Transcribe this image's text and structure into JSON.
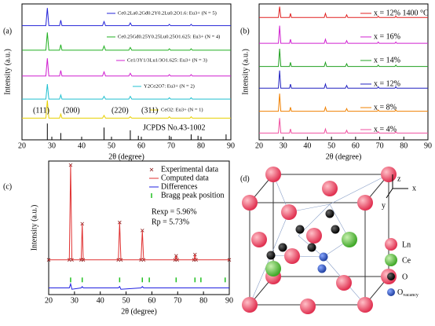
{
  "chart_data": [
    {
      "type": "line",
      "label": "(a)",
      "xlabel": "2θ (degree)",
      "ylabel": "Intensity (a.u.)",
      "xlim": [
        20,
        90
      ],
      "xticks": [
        20,
        30,
        40,
        50,
        60,
        70,
        80,
        90
      ],
      "ylim": [
        0,
        100
      ],
      "x": [
        20,
        28,
        28.5,
        29,
        32.6,
        33,
        33.4,
        47,
        47.5,
        48,
        55.8,
        56.3,
        56.8,
        69,
        69.4,
        69.8,
        76.3,
        76.7,
        77.1,
        90
      ],
      "series": [
        {
          "name": "Ce0.2La0.2Gd0.2Y0.2Lu0.2O1.6: Eu3+ (N = 5)",
          "color": "#2424d8",
          "values": [
            84,
            84,
            97,
            84,
            84,
            88,
            84,
            84,
            87,
            84,
            84,
            86,
            84,
            84,
            85,
            84,
            84,
            85,
            84,
            84
          ]
        },
        {
          "name": "Ce0.25Gd0.25Y0.25Lu0.25O1.625: Eu3+ (N = 4)",
          "color": "#22b022",
          "values": [
            66,
            66,
            79,
            66,
            66,
            70,
            66,
            66,
            69,
            66,
            66,
            68,
            66,
            66,
            67,
            66,
            66,
            67,
            66,
            66
          ]
        },
        {
          "name": "Ce1/3Y1/3Lu1/3O1.625: Eu3+ (N = 3)",
          "color": "#d020d0",
          "values": [
            47,
            47,
            60,
            47,
            47,
            51,
            47,
            47,
            50,
            47,
            47,
            49,
            47,
            47,
            48,
            47,
            47,
            48,
            47,
            47
          ]
        },
        {
          "name": "Y2Ce2O7: Eu3+ (N = 2)",
          "color": "#20c0d0",
          "values": [
            30,
            30,
            41,
            30,
            30,
            33,
            30,
            30,
            32,
            30,
            30,
            32,
            30,
            30,
            31,
            30,
            30,
            31,
            30,
            30
          ]
        },
        {
          "name": "CeO2: Eu3+ (N = 1)",
          "color": "#e8d000",
          "values": [
            16,
            16,
            29,
            16,
            16,
            19,
            16,
            16,
            18,
            16,
            16,
            17,
            16,
            16,
            17,
            16,
            16,
            17,
            16,
            16
          ]
        }
      ],
      "reference": {
        "name": "JCPDS No.43-1002",
        "color": "#000000",
        "x": [
          28.5,
          33,
          47.5,
          56.3,
          59,
          69.4,
          76.7,
          79,
          88.4
        ],
        "values": [
          12,
          5,
          9,
          7,
          3,
          3,
          4,
          3,
          4
        ]
      },
      "peak_labels": [
        "(111)",
        "(200)",
        "(220)",
        "(311)"
      ]
    },
    {
      "type": "line",
      "label": "(b)",
      "xlabel": "2θ (degree)",
      "ylabel": "Intensity (a.u.)",
      "xlim": [
        20,
        90
      ],
      "xticks": [
        20,
        30,
        40,
        50,
        60,
        70,
        80,
        90
      ],
      "ylim": [
        0,
        100
      ],
      "x": [
        20,
        28,
        28.5,
        29,
        32.6,
        33,
        33.4,
        47,
        47.5,
        48,
        55.8,
        56.3,
        56.8,
        69,
        69.4,
        69.8,
        76.3,
        76.7,
        77.1,
        90
      ],
      "series": [
        {
          "name": "x = 12%  1400 °C",
          "color": "#e02020",
          "values": [
            90,
            90,
            98,
            90,
            90,
            93,
            90,
            90,
            93,
            90,
            90,
            92,
            90,
            90,
            91,
            90,
            90,
            91,
            90,
            90
          ]
        },
        {
          "name": "x = 16%",
          "color": "#d020d0",
          "values": [
            71,
            71,
            84,
            71,
            71,
            74,
            71,
            71,
            74,
            71,
            71,
            73,
            71,
            71,
            72,
            71,
            71,
            72,
            71,
            71
          ]
        },
        {
          "name": "x = 14%",
          "color": "#20a020",
          "values": [
            54,
            54,
            67,
            54,
            54,
            57,
            54,
            54,
            57,
            54,
            54,
            56,
            54,
            54,
            55,
            54,
            54,
            55,
            54,
            54
          ]
        },
        {
          "name": "x = 12%",
          "color": "#2020c0",
          "values": [
            38,
            38,
            51,
            38,
            38,
            41,
            38,
            38,
            41,
            38,
            38,
            40,
            38,
            38,
            39,
            38,
            38,
            39,
            38,
            38
          ]
        },
        {
          "name": "x = 8%",
          "color": "#f08000",
          "values": [
            21,
            21,
            34,
            21,
            21,
            24,
            21,
            21,
            24,
            21,
            21,
            23,
            21,
            21,
            22,
            21,
            21,
            22,
            21,
            21
          ]
        },
        {
          "name": "x = 4%",
          "color": "#f050a0",
          "values": [
            5,
            5,
            16,
            5,
            5,
            8,
            5,
            5,
            8,
            5,
            5,
            7,
            5,
            5,
            6,
            5,
            5,
            6,
            5,
            5
          ]
        }
      ]
    },
    {
      "type": "line",
      "label": "(c)",
      "xlabel": "2θ (degree)",
      "ylabel": "Intensity (a.u.)",
      "xlim": [
        20,
        90
      ],
      "xticks": [
        20,
        30,
        40,
        50,
        60,
        70,
        80,
        90
      ],
      "ylim": [
        0,
        100
      ],
      "series": [
        {
          "name": "Experimental data",
          "kind": "scatter",
          "color": "#8b1a1a",
          "x": [
            20,
            28,
            28.5,
            29,
            32.6,
            33,
            33.4,
            47,
            47.5,
            48,
            55.8,
            56.3,
            56.8,
            69,
            69.4,
            69.8,
            76.3,
            76.7,
            77.1,
            90
          ],
          "values": [
            26,
            26,
            97,
            26,
            26,
            53,
            26,
            26,
            54,
            26,
            26,
            48,
            26,
            26,
            29,
            26,
            26,
            30,
            26,
            26
          ]
        },
        {
          "name": "Computed data",
          "kind": "line",
          "color": "#e03030",
          "x": [
            20,
            28,
            28.5,
            29,
            32.6,
            33,
            33.4,
            47,
            47.5,
            48,
            55.8,
            56.3,
            56.8,
            69,
            69.4,
            69.8,
            76.3,
            76.7,
            77.1,
            90
          ],
          "values": [
            26,
            26,
            97,
            26,
            26,
            53,
            26,
            26,
            54,
            26,
            26,
            48,
            26,
            26,
            29,
            26,
            26,
            30,
            26,
            26
          ]
        },
        {
          "name": "Differences",
          "kind": "line",
          "color": "#2020e0",
          "x": [
            20,
            28,
            28.5,
            29,
            32.6,
            33,
            33.4,
            47,
            47.5,
            48,
            55.8,
            56.3,
            56.8,
            69,
            69.4,
            69.8,
            76.3,
            76.7,
            77.1,
            90
          ],
          "values": [
            5,
            5,
            8,
            4,
            5,
            6,
            5,
            5,
            6,
            4,
            5,
            6,
            5,
            5,
            5,
            5,
            5,
            5,
            5,
            5
          ]
        },
        {
          "name": "Bragg peak position",
          "kind": "ticks",
          "color": "#20c020",
          "x": [
            28.5,
            33,
            47.5,
            56.3,
            59,
            69.4,
            76.7,
            79,
            88.4
          ],
          "values": [
            11,
            11,
            11,
            11,
            11,
            11,
            11,
            11,
            11
          ]
        }
      ],
      "annotations": [
        "Rexp = 5.96%",
        "Rp = 5.73%"
      ]
    }
  ],
  "diagram": {
    "label": "(d)",
    "axes": [
      "z",
      "x",
      "y"
    ],
    "legend": [
      {
        "text": "Ln"
      },
      {
        "text": "Ce"
      },
      {
        "text": "O"
      },
      {
        "text": "O",
        "subscript": "vacancy"
      }
    ]
  }
}
